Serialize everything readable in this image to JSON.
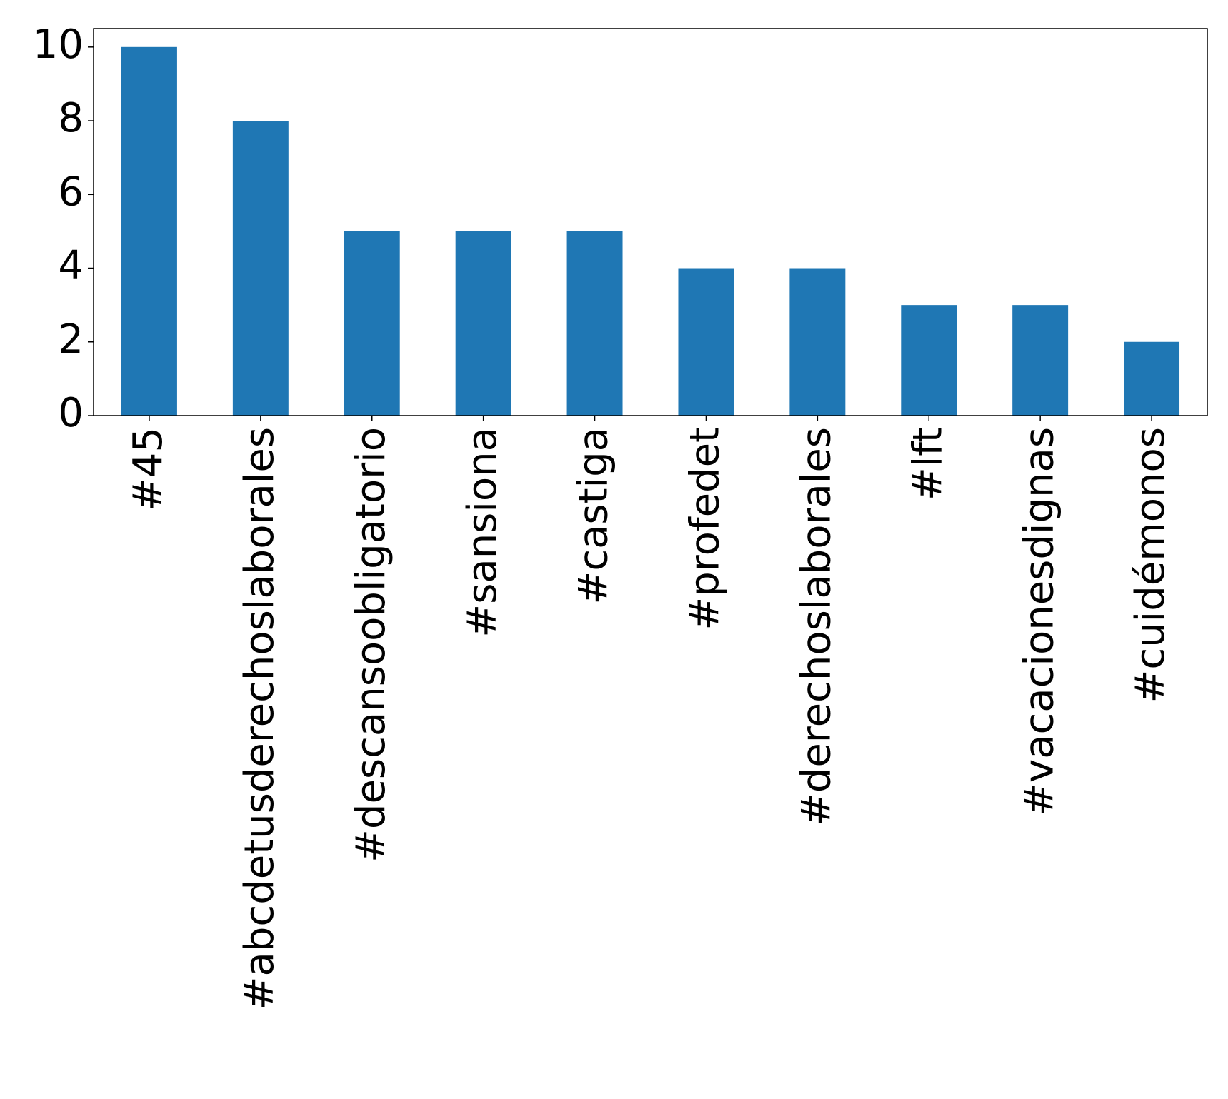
{
  "chart_data": {
    "type": "bar",
    "title": "",
    "xlabel": "",
    "ylabel": "",
    "categories": [
      "#45",
      "#abcdetusderechoslaborales",
      "#descansoobligatorio",
      "#sansiona",
      "#castiga",
      "#profedet",
      "#derechoslaborales",
      "#lft",
      "#vacacionesdignas",
      "#cuidémonos"
    ],
    "values": [
      10,
      8,
      5,
      5,
      5,
      4,
      4,
      3,
      3,
      2
    ],
    "ylim": [
      0,
      10.5
    ],
    "yticks": [
      0,
      2,
      4,
      6,
      8,
      10
    ],
    "grid": false,
    "legend": "none",
    "bar_color": "#1f77b4"
  }
}
